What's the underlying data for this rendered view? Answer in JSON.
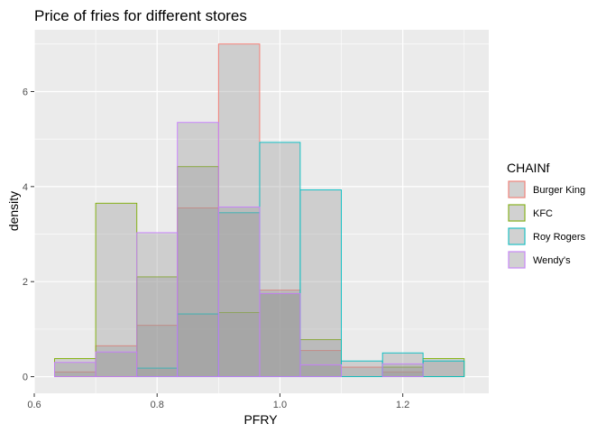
{
  "chart_data": {
    "type": "histogram",
    "title": "Price of fries for different stores",
    "xlabel": "PFRY",
    "ylabel": "density",
    "xlim": [
      0.6,
      1.34
    ],
    "ylim": [
      -0.35,
      7.3
    ],
    "x_ticks": [
      0.6,
      0.8,
      1.0,
      1.2
    ],
    "x_tick_labels": [
      "0.6",
      "0.8",
      "1.0",
      "1.2"
    ],
    "y_ticks": [
      0,
      2,
      4,
      6
    ],
    "y_tick_labels": [
      "0",
      "2",
      "4",
      "6"
    ],
    "bin_edges": [
      0.633,
      0.7,
      0.767,
      0.833,
      0.9,
      0.967,
      1.033,
      1.1,
      1.167,
      1.233,
      1.3
    ],
    "series": [
      {
        "name": "Burger King",
        "color": "#F8766D",
        "values": [
          0.1,
          0.65,
          1.08,
          3.55,
          7.0,
          1.82,
          0.55,
          0.2,
          0.1,
          0.0
        ]
      },
      {
        "name": "KFC",
        "color": "#7CAE00",
        "values": [
          0.38,
          3.65,
          2.1,
          4.42,
          1.35,
          1.75,
          0.78,
          0.0,
          0.2,
          0.38
        ]
      },
      {
        "name": "Roy Rogers",
        "color": "#00BFC4",
        "values": [
          0.0,
          0.0,
          0.18,
          1.32,
          3.45,
          4.93,
          3.93,
          0.33,
          0.5,
          0.33
        ]
      },
      {
        "name": "Wendy's",
        "color": "#C77CFF",
        "values": [
          0.3,
          0.52,
          3.03,
          5.35,
          3.57,
          1.75,
          0.25,
          0.0,
          0.27,
          0.0
        ]
      }
    ],
    "fill_color": "#999999",
    "fill_opacity": 0.35,
    "panel_background": "#EBEBEB",
    "grid": true,
    "legend_title": "CHAINf",
    "legend_position": "right"
  }
}
